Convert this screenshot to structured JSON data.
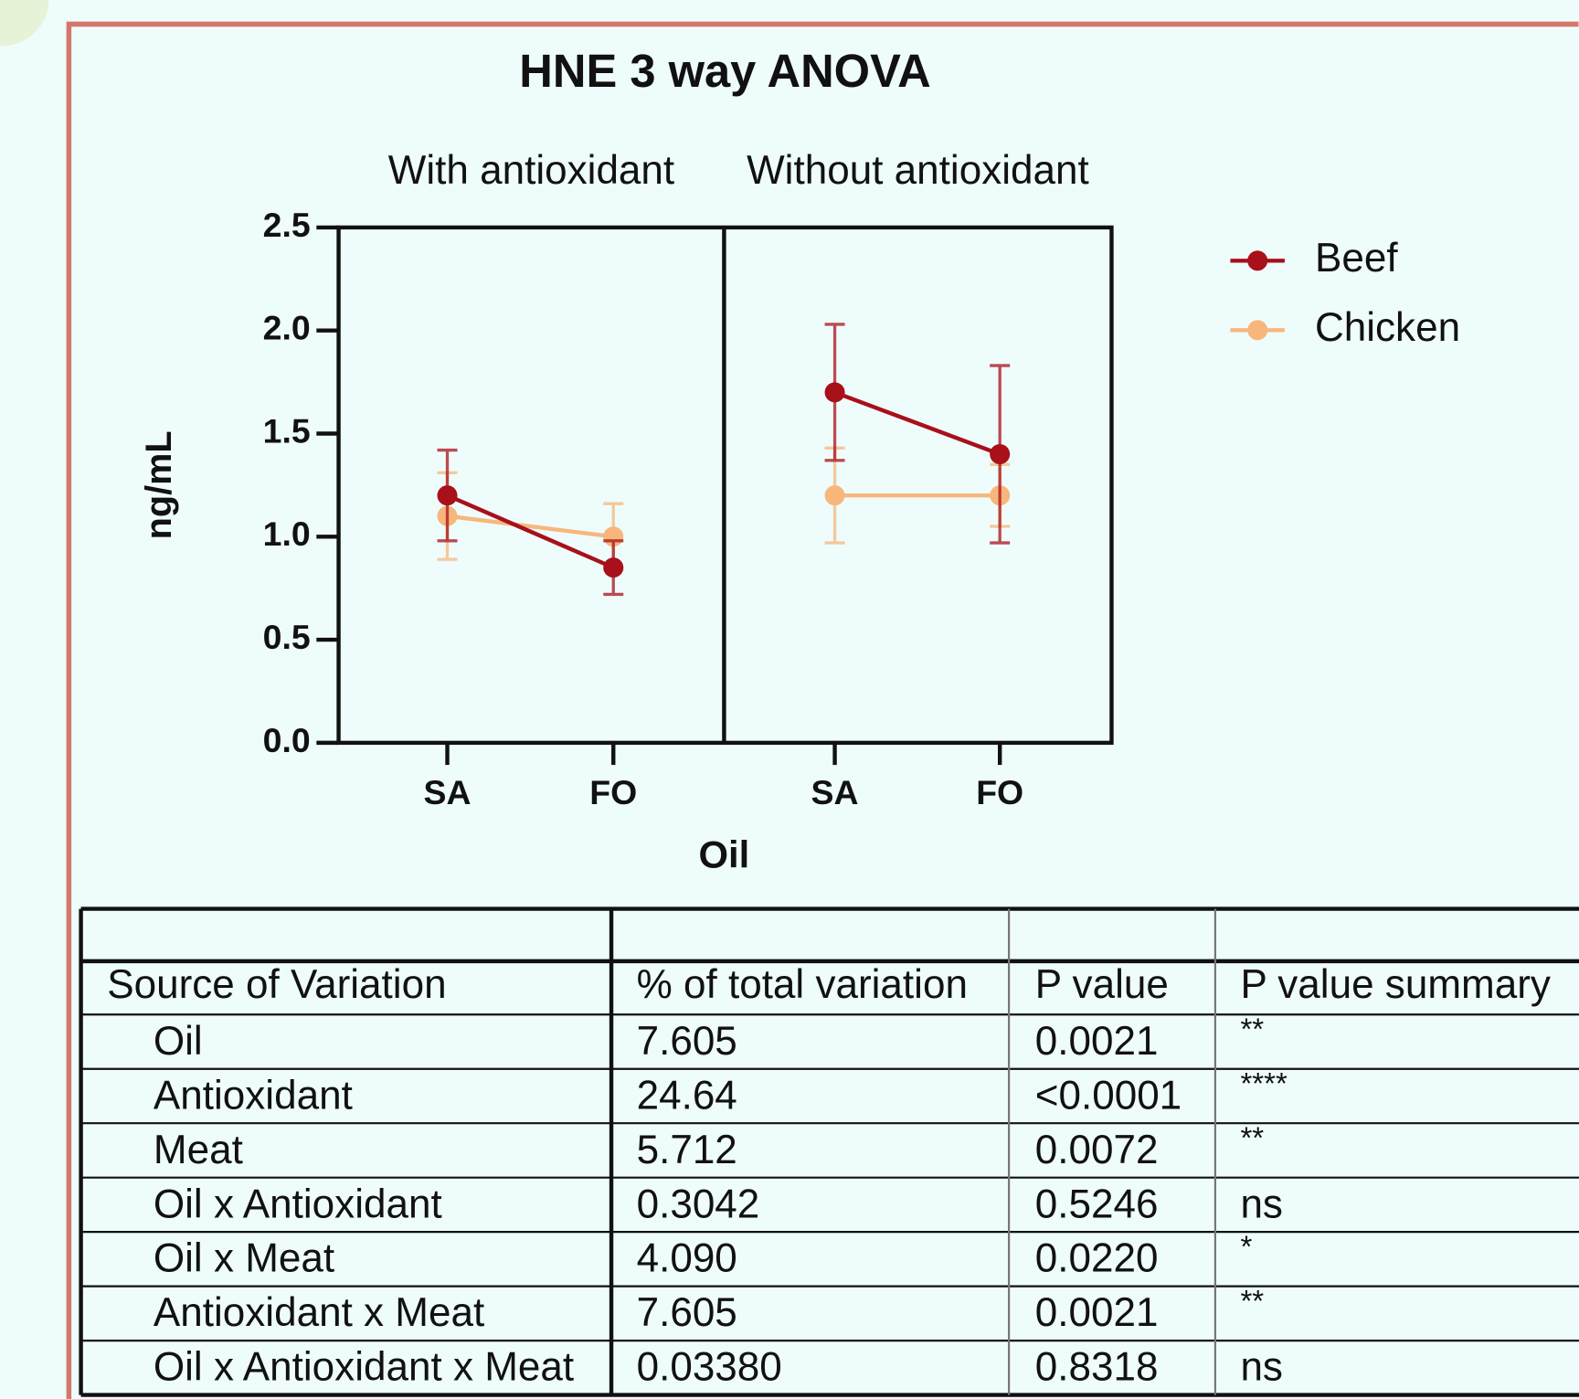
{
  "chart_data": {
    "type": "line",
    "title": "HNE 3 way ANOVA",
    "xlabel": "Oil",
    "ylabel": "ng/mL",
    "panels": [
      "With antioxidant",
      "Without antioxidant"
    ],
    "categories": [
      "SA",
      "FO",
      "SA",
      "FO"
    ],
    "series": [
      {
        "name": "Beef",
        "color": "#a8101a",
        "values": [
          1.2,
          0.85,
          1.7,
          1.4
        ],
        "errors": [
          0.22,
          0.13,
          0.33,
          0.43
        ]
      },
      {
        "name": "Chicken",
        "color": "#f7b77c",
        "values": [
          1.1,
          1.0,
          1.2,
          1.2
        ],
        "errors": [
          0.21,
          0.16,
          0.23,
          0.15
        ]
      }
    ],
    "ylim": [
      0,
      2.5
    ],
    "yticks": [
      {
        "value": 0,
        "label": "0.0"
      },
      {
        "value": 0.5,
        "label": "0.5"
      },
      {
        "value": 1,
        "label": "1.0"
      },
      {
        "value": 1.5,
        "label": "1.5"
      },
      {
        "value": 2,
        "label": "2.0"
      },
      {
        "value": 2.5,
        "label": "2.5"
      }
    ],
    "legend": "right"
  },
  "table": {
    "columns": [
      "Source of Variation",
      "% of total variation",
      "P value",
      "P value summary"
    ],
    "rows": [
      [
        "Oil",
        "7.605",
        "0.0021",
        "**"
      ],
      [
        "Antioxidant",
        "24.64",
        "<0.0001",
        "****"
      ],
      [
        "Meat",
        "5.712",
        "0.0072",
        "**"
      ],
      [
        "Oil x Antioxidant",
        "0.3042",
        "0.5246",
        "ns"
      ],
      [
        "Oil x Meat",
        "4.090",
        "0.0220",
        "*"
      ],
      [
        "Antioxidant x Meat",
        "7.605",
        "0.0021",
        "**"
      ],
      [
        "Oil x Antioxidant x Meat",
        "0.03380",
        "0.8318",
        "ns"
      ]
    ]
  }
}
